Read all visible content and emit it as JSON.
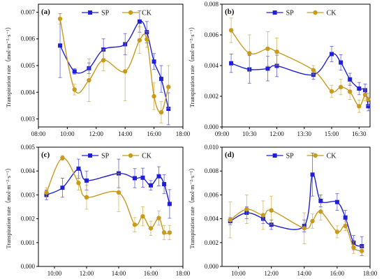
{
  "colors": {
    "SP": "#1f1fd6",
    "CK": "#c89a1e",
    "axis": "#000000"
  },
  "chart_data": [
    {
      "type": "line",
      "panel_label": "(a)",
      "ylabel": "Transpiration rate（mol·m⁻²·s⁻¹）",
      "xlabel": "",
      "x_unit": "hour of day",
      "xlim": [
        8,
        18
      ],
      "ylim": [
        0.0027,
        0.0073
      ],
      "x_ticks": [
        8,
        10,
        12,
        14,
        16,
        18
      ],
      "x_tick_labels": [
        "08:00",
        "10:00",
        "12:00",
        "14:00",
        "16:00",
        "18:00"
      ],
      "y_ticks": [
        0.003,
        0.004,
        0.005,
        0.006,
        0.007
      ],
      "y_tick_labels": [
        "0.003",
        "0.004",
        "0.005",
        "0.006",
        "0.007"
      ],
      "legend": {
        "position": "top",
        "entries": [
          "SP",
          "CK"
        ]
      },
      "series": [
        {
          "name": "SP",
          "marker": "square",
          "x": [
            9.5,
            10.5,
            11.5,
            12.5,
            14.0,
            15.0,
            15.5,
            16.0,
            16.5,
            17.0
          ],
          "y": [
            0.00575,
            0.00478,
            0.0049,
            0.0056,
            0.0058,
            0.00665,
            0.00625,
            0.00515,
            0.0045,
            0.00338
          ],
          "err": [
            0.0012,
            0.0001,
            0.0002,
            0.0004,
            0.0004,
            0.0004,
            0.0004,
            0.0003,
            0.0005,
            0.0006
          ]
        },
        {
          "name": "CK",
          "marker": "circle",
          "x": [
            9.5,
            10.5,
            11.5,
            12.5,
            14.0,
            15.0,
            15.5,
            16.0,
            16.5,
            17.0
          ],
          "y": [
            0.00675,
            0.0041,
            0.00445,
            0.0052,
            0.00478,
            0.00595,
            0.00598,
            0.00385,
            0.00325,
            0.0042
          ],
          "err": [
            0.0002,
            0.0002,
            0.0008,
            0.0004,
            0.0011,
            0.0005,
            0.0003,
            0.0005,
            0.0004,
            0.0008
          ]
        }
      ]
    },
    {
      "type": "line",
      "panel_label": "(b)",
      "ylabel": "Transpiration rate（mol·m⁻²·s⁻¹）",
      "xlabel": "",
      "x_unit": "hour of day",
      "xlim": [
        9,
        17.1
      ],
      "ylim": [
        0,
        0.008
      ],
      "x_ticks": [
        9,
        10.5,
        12,
        13.5,
        15,
        16.5
      ],
      "x_tick_labels": [
        "09:00",
        "10:30",
        "12:00",
        "13:30",
        "15:00",
        "16:30"
      ],
      "y_ticks": [
        0,
        0.002,
        0.004,
        0.006,
        0.008
      ],
      "y_tick_labels": [
        "0.000",
        "0.002",
        "0.004",
        "0.006",
        "0.008"
      ],
      "legend": {
        "position": "top",
        "entries": [
          "SP",
          "CK"
        ]
      },
      "series": [
        {
          "name": "SP",
          "marker": "square",
          "x": [
            9.5,
            10.5,
            11.5,
            12.0,
            14.0,
            15.0,
            15.5,
            16.0,
            16.5,
            16.83,
            17.0
          ],
          "y": [
            0.00415,
            0.00375,
            0.0038,
            0.00398,
            0.0034,
            0.00475,
            0.0042,
            0.0031,
            0.0025,
            0.0024,
            0.00135
          ],
          "err": [
            0.0006,
            0.0009,
            0.0008,
            0.0007,
            0.0003,
            0.0005,
            0.0005,
            0.0004,
            0.0004,
            0.0004,
            0.0003
          ]
        },
        {
          "name": "CK",
          "marker": "circle",
          "x": [
            9.5,
            10.5,
            11.5,
            12.0,
            14.0,
            15.0,
            15.5,
            16.0,
            16.5,
            16.83,
            17.0
          ],
          "y": [
            0.0063,
            0.0048,
            0.0051,
            0.0049,
            0.0037,
            0.00232,
            0.0026,
            0.0023,
            0.00135,
            0.0021,
            0.0018
          ],
          "err": [
            0.0008,
            0.0012,
            0.0011,
            0.0009,
            0.0003,
            0.0004,
            0.0005,
            0.0005,
            0.0004,
            0.0004,
            0.0004
          ]
        }
      ]
    },
    {
      "type": "line",
      "panel_label": "(c)",
      "ylabel": "Transpiration rate（mol·m⁻²·s⁻¹）",
      "xlabel": "",
      "x_unit": "hour of day",
      "xlim": [
        9,
        18
      ],
      "ylim": [
        0,
        0.005
      ],
      "x_ticks": [
        10,
        12,
        14,
        16,
        18
      ],
      "x_tick_labels": [
        "10:00",
        "12:00",
        "14:00",
        "16:00",
        "18:00"
      ],
      "y_ticks": [
        0,
        0.001,
        0.002,
        0.003,
        0.004,
        0.005
      ],
      "y_tick_labels": [
        "0.000",
        "0.001",
        "0.002",
        "0.003",
        "0.004",
        "0.005"
      ],
      "legend": {
        "position": "top",
        "entries": [
          "SP",
          "CK"
        ]
      },
      "series": [
        {
          "name": "SP",
          "marker": "square",
          "x": [
            9.5,
            10.5,
            11.5,
            12.0,
            14.0,
            15.0,
            15.5,
            16.0,
            16.5,
            16.83,
            17.17
          ],
          "y": [
            0.003,
            0.0033,
            0.0041,
            0.0036,
            0.0039,
            0.0037,
            0.00372,
            0.0034,
            0.00378,
            0.00345,
            0.00262
          ],
          "err": [
            0.0002,
            0.0004,
            0.0004,
            0.0004,
            0.0006,
            0.0004,
            0.0004,
            0.0002,
            0.0004,
            0.0004,
            0.0006
          ]
        },
        {
          "name": "CK",
          "marker": "circle",
          "x": [
            9.5,
            10.5,
            11.5,
            12.0,
            14.0,
            15.0,
            15.5,
            16.0,
            16.5,
            16.83,
            17.17
          ],
          "y": [
            0.0031,
            0.00455,
            0.0035,
            0.0029,
            0.0031,
            0.00175,
            0.0021,
            0.0016,
            0.00203,
            0.00142,
            0.00142
          ],
          "err": [
            0.0002,
            0.0001,
            0.0003,
            0.0005,
            0.0008,
            0.0003,
            0.0004,
            0.0003,
            0.0003,
            0.0003,
            0.0003
          ]
        }
      ]
    },
    {
      "type": "line",
      "panel_label": "(d)",
      "ylabel": "Transpiration rate（mol·m⁻²·s⁻¹）",
      "xlabel": "",
      "x_unit": "hour of day",
      "xlim": [
        9,
        18
      ],
      "ylim": [
        0,
        0.01
      ],
      "x_ticks": [
        10,
        12,
        14,
        16,
        18
      ],
      "x_tick_labels": [
        "10:00",
        "12:00",
        "14:00",
        "16:00",
        "18:00"
      ],
      "y_ticks": [
        0,
        0.002,
        0.004,
        0.006,
        0.008,
        0.01
      ],
      "y_tick_labels": [
        "0.000",
        "0.002",
        "0.004",
        "0.006",
        "0.008",
        "0.010"
      ],
      "legend": {
        "position": "top",
        "entries": [
          "SP",
          "CK"
        ]
      },
      "series": [
        {
          "name": "SP",
          "marker": "square",
          "x": [
            9.5,
            10.5,
            11.5,
            12.0,
            14.0,
            14.5,
            15.0,
            16.0,
            16.5,
            17.0,
            17.5
          ],
          "y": [
            0.0038,
            0.0045,
            0.004,
            0.0035,
            0.0034,
            0.0077,
            0.0055,
            0.0054,
            0.0041,
            0.002,
            0.0017
          ],
          "err": [
            0.0003,
            0.0005,
            0.0004,
            0.0004,
            0.0005,
            0.0018,
            0.0005,
            0.0007,
            0.0006,
            0.0006,
            0.0008
          ]
        },
        {
          "name": "CK",
          "marker": "circle",
          "x": [
            9.5,
            10.5,
            11.5,
            12.0,
            14.0,
            14.5,
            15.0,
            16.0,
            16.5,
            17.0,
            17.5
          ],
          "y": [
            0.0039,
            0.0048,
            0.0043,
            0.0047,
            0.0032,
            0.0038,
            0.0046,
            0.0029,
            0.0034,
            0.0016,
            0.0013
          ],
          "err": [
            0.0015,
            0.0012,
            0.0012,
            0.0012,
            0.0013,
            0.0006,
            0.0007,
            0.0005,
            0.0004,
            0.0005,
            0.0004
          ]
        }
      ]
    }
  ]
}
